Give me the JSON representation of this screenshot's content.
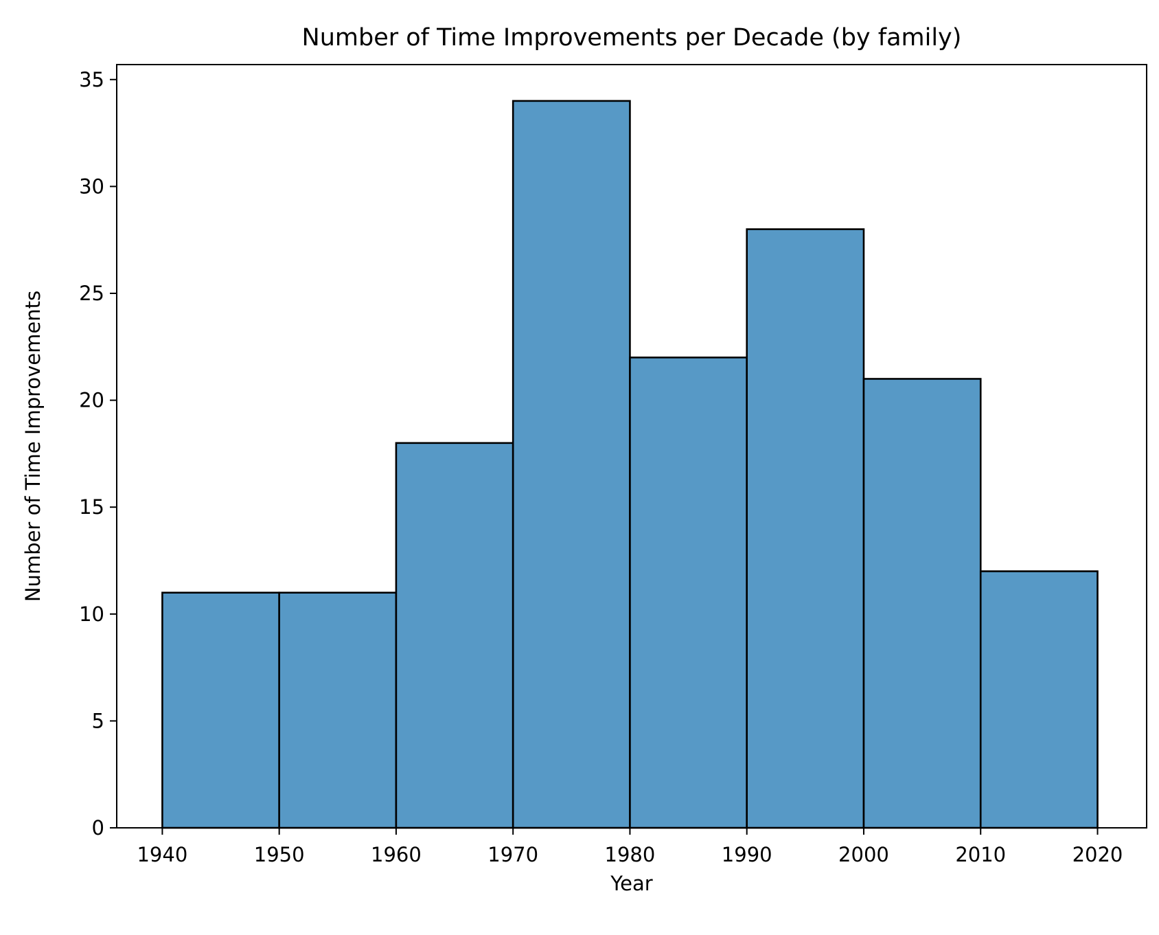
{
  "chart_data": {
    "type": "bar",
    "title": "Number of Time Improvements per Decade (by family)",
    "xlabel": "Year",
    "ylabel": "Number of Time Improvements",
    "bins": [
      {
        "start": 1940,
        "end": 1950,
        "value": 11
      },
      {
        "start": 1950,
        "end": 1960,
        "value": 11
      },
      {
        "start": 1960,
        "end": 1970,
        "value": 18
      },
      {
        "start": 1970,
        "end": 1980,
        "value": 34
      },
      {
        "start": 1980,
        "end": 1990,
        "value": 22
      },
      {
        "start": 1990,
        "end": 2000,
        "value": 28
      },
      {
        "start": 2000,
        "end": 2010,
        "value": 21
      },
      {
        "start": 2010,
        "end": 2020,
        "value": 12
      }
    ],
    "xlim": [
      1936.1,
      2024.2
    ],
    "ylim": [
      0,
      35.7
    ],
    "xticks": [
      1940,
      1950,
      1960,
      1970,
      1980,
      1990,
      2000,
      2010,
      2020
    ],
    "yticks": [
      0,
      5,
      10,
      15,
      20,
      25,
      30,
      35
    ],
    "grid": false,
    "colors": {
      "bar_fill": "#5799c6",
      "bar_edge": "#000000",
      "axes": "#000000",
      "background": "#ffffff"
    }
  }
}
